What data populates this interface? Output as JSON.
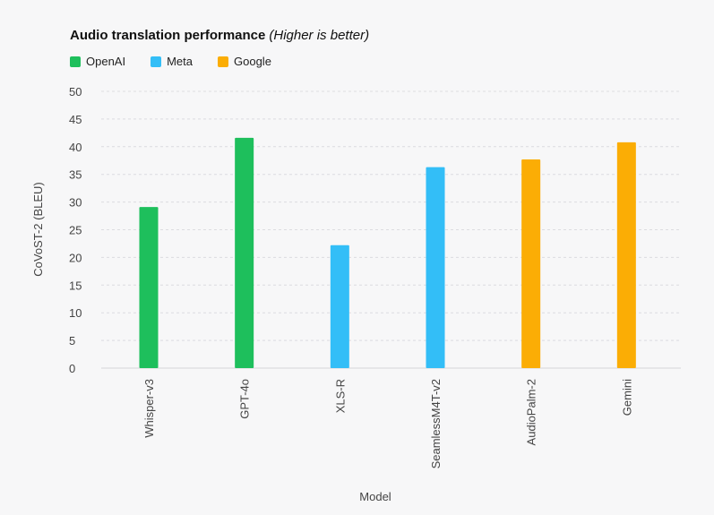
{
  "chart_data": {
    "type": "bar",
    "title": "Audio translation performance",
    "subtitle": "(Higher is better)",
    "xlabel": "Model",
    "ylabel": "CoVoST-2 (BLEU)",
    "ylim": [
      0,
      50
    ],
    "yticks": [
      0,
      5,
      10,
      15,
      20,
      25,
      30,
      35,
      40,
      45,
      50
    ],
    "grid": true,
    "legend_position": "top-left",
    "legend": [
      {
        "name": "OpenAI",
        "color": "#1ebf5c"
      },
      {
        "name": "Meta",
        "color": "#33bef7"
      },
      {
        "name": "Google",
        "color": "#fbad05"
      }
    ],
    "categories": [
      "Whisper-v3",
      "GPT-4o",
      "XLS-R",
      "SeamlessM4T-v2",
      "AudioPalm-2",
      "Gemini"
    ],
    "values": [
      29.1,
      41.6,
      22.2,
      36.3,
      37.7,
      40.8
    ],
    "groups": [
      "OpenAI",
      "OpenAI",
      "Meta",
      "Meta",
      "Google",
      "Google"
    ]
  }
}
